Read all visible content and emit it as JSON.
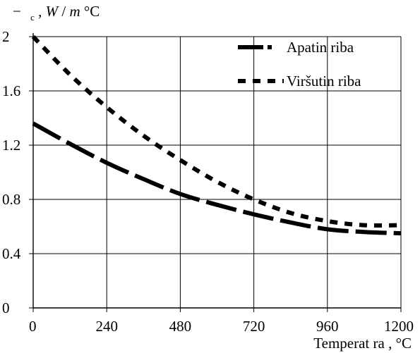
{
  "chart_data": {
    "type": "line",
    "title": "",
    "ylabel_parts": [
      "−",
      "c",
      ", ",
      "W",
      " / ",
      "m",
      "°C"
    ],
    "xlabel": "Temperat ra , °C",
    "xlim": [
      0,
      1200
    ],
    "ylim": [
      0,
      2
    ],
    "xticks": [
      0,
      240,
      480,
      720,
      960,
      1200
    ],
    "yticks": [
      0,
      0.4,
      0.8,
      1.2,
      1.6,
      2
    ],
    "ytick_labels": [
      "0",
      "0.4",
      "0.8",
      "1.2",
      "1.6",
      "2"
    ],
    "grid": true,
    "legend_position": "top-right",
    "series": [
      {
        "name": "Apatin riba",
        "style": "long-dash",
        "color": "#000000",
        "x": [
          0,
          120,
          240,
          360,
          480,
          600,
          720,
          840,
          960,
          1080,
          1200
        ],
        "y": [
          1.36,
          1.21,
          1.07,
          0.95,
          0.84,
          0.76,
          0.69,
          0.63,
          0.58,
          0.56,
          0.55
        ]
      },
      {
        "name": "Viršutin riba",
        "style": "short-dash",
        "color": "#000000",
        "x": [
          0,
          120,
          240,
          360,
          480,
          600,
          720,
          840,
          960,
          1080,
          1200
        ],
        "y": [
          2.0,
          1.72,
          1.48,
          1.27,
          1.09,
          0.93,
          0.8,
          0.7,
          0.64,
          0.61,
          0.61
        ]
      }
    ]
  }
}
